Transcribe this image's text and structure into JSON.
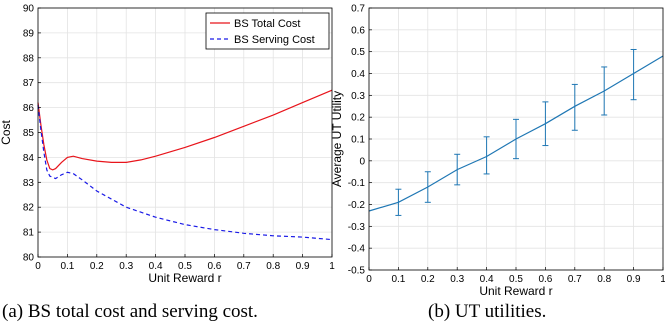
{
  "captions": {
    "a": "(a) BS total cost and serving cost.",
    "b": "(b) UT utilities."
  },
  "chart_data": [
    {
      "type": "line",
      "xlabel": "Unit Reward r",
      "ylabel": "Cost",
      "xlim": [
        0,
        1
      ],
      "ylim": [
        80,
        90
      ],
      "xticks": [
        "0",
        "0.1",
        "0.2",
        "0.3",
        "0.4",
        "0.5",
        "0.6",
        "0.7",
        "0.8",
        "0.9",
        "1"
      ],
      "yticks": [
        "80",
        "81",
        "82",
        "83",
        "84",
        "85",
        "86",
        "87",
        "88",
        "89",
        "90"
      ],
      "grid": true,
      "legend_position": "top-right",
      "series": [
        {
          "name": "BS Total Cost",
          "color": "#e8141b",
          "style": "solid",
          "x": [
            0,
            0.01,
            0.02,
            0.03,
            0.04,
            0.05,
            0.06,
            0.08,
            0.1,
            0.12,
            0.15,
            0.2,
            0.25,
            0.3,
            0.35,
            0.4,
            0.5,
            0.6,
            0.7,
            0.8,
            0.9,
            1.0
          ],
          "y": [
            86.2,
            85.3,
            84.5,
            83.9,
            83.55,
            83.5,
            83.55,
            83.8,
            84.0,
            84.05,
            83.95,
            83.85,
            83.8,
            83.8,
            83.9,
            84.05,
            84.4,
            84.8,
            85.25,
            85.7,
            86.2,
            86.7
          ]
        },
        {
          "name": "BS Serving Cost",
          "color": "#1a1ae6",
          "style": "dashed",
          "x": [
            0,
            0.01,
            0.02,
            0.03,
            0.04,
            0.05,
            0.06,
            0.08,
            0.1,
            0.12,
            0.15,
            0.2,
            0.3,
            0.4,
            0.5,
            0.6,
            0.7,
            0.8,
            0.9,
            1.0
          ],
          "y": [
            86.1,
            85.1,
            84.2,
            83.5,
            83.25,
            83.2,
            83.15,
            83.3,
            83.4,
            83.35,
            83.1,
            82.65,
            82.0,
            81.6,
            81.3,
            81.1,
            80.95,
            80.85,
            80.8,
            80.7
          ]
        }
      ]
    },
    {
      "type": "line",
      "xlabel": "Unit Reward r",
      "ylabel": "Average UT Utility",
      "xlim": [
        0,
        1
      ],
      "ylim": [
        -0.5,
        0.7
      ],
      "xticks": [
        "0",
        "0.1",
        "0.2",
        "0.3",
        "0.4",
        "0.5",
        "0.6",
        "0.7",
        "0.8",
        "0.9",
        "1"
      ],
      "yticks": [
        "-0.5",
        "-0.4",
        "-0.3",
        "-0.2",
        "-0.1",
        "0",
        "0.1",
        "0.2",
        "0.3",
        "0.4",
        "0.5",
        "0.6",
        "0.7"
      ],
      "grid": true,
      "series": [
        {
          "color": "#1f77b4",
          "x": [
            0,
            0.1,
            0.2,
            0.3,
            0.4,
            0.5,
            0.6,
            0.7,
            0.8,
            0.9,
            1.0
          ],
          "y": [
            -0.23,
            -0.19,
            -0.12,
            -0.04,
            0.02,
            0.1,
            0.17,
            0.25,
            0.32,
            0.4,
            0.48
          ],
          "error_x": [
            0.1,
            0.2,
            0.3,
            0.4,
            0.5,
            0.6,
            0.7,
            0.8,
            0.9
          ],
          "error_low": [
            -0.25,
            -0.19,
            -0.11,
            -0.06,
            0.01,
            0.07,
            0.14,
            0.21,
            0.28
          ],
          "error_high": [
            -0.13,
            -0.05,
            0.03,
            0.11,
            0.19,
            0.27,
            0.35,
            0.43,
            0.51
          ]
        }
      ]
    }
  ]
}
